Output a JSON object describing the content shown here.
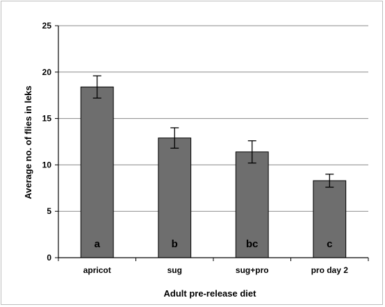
{
  "chart_data": {
    "type": "bar",
    "title": "",
    "xlabel": "Adult pre-release diet",
    "ylabel": "Average no. of flies in leks",
    "categories": [
      "apricot",
      "sug",
      "sug+pro",
      "pro day 2"
    ],
    "values": [
      18.4,
      12.9,
      11.4,
      8.3
    ],
    "error": [
      1.2,
      1.1,
      1.2,
      0.7
    ],
    "group_letters": [
      "a",
      "b",
      "bc",
      "c"
    ],
    "ylim": [
      0,
      25
    ],
    "yticks": [
      0,
      5,
      10,
      15,
      20,
      25
    ],
    "grid": true,
    "legend": "none",
    "colors": {
      "bar": "#6e6e6e",
      "bar_edge": "#000000",
      "grid": "#8a8a8a",
      "error_bar": "#000000"
    }
  }
}
